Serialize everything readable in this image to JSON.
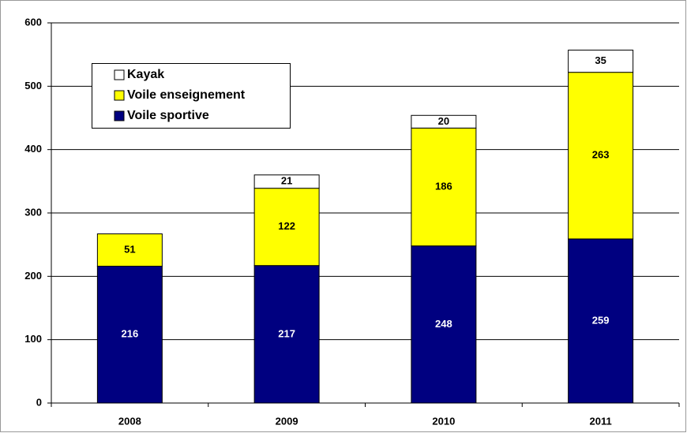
{
  "chart_data": {
    "type": "stacked-bar",
    "categories": [
      "2008",
      "2009",
      "2010",
      "2011"
    ],
    "series": [
      {
        "name": "Voile sportive",
        "color": "#000080",
        "values": [
          216,
          217,
          248,
          259
        ]
      },
      {
        "name": "Voile enseignement",
        "color": "#ffff00",
        "values": [
          51,
          122,
          186,
          263
        ]
      },
      {
        "name": "Kayak",
        "color": "#ffffff",
        "values": [
          null,
          21,
          20,
          35
        ]
      }
    ],
    "ylim": [
      0,
      600
    ],
    "yticks": [
      0,
      100,
      200,
      300,
      400,
      500,
      600
    ],
    "grid": true,
    "legend": "upper left"
  }
}
